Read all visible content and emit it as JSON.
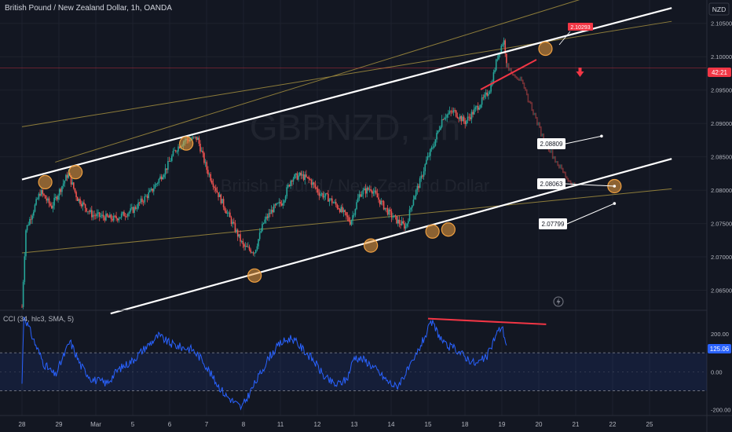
{
  "header": {
    "title": "British Pound / New Zealand Dollar, 1h, OANDA",
    "currency": "NZD",
    "watermark_symbol": "GBPNZD, 1h",
    "watermark_name": "British Pound / New Zealand Dollar"
  },
  "indicator": {
    "title": "CCI (34, hlc3, SMA, 5)",
    "current_value": "125.06"
  },
  "price_tags": {
    "current_price": "2.10293",
    "countdown": "42:21"
  },
  "callouts": [
    {
      "label": "2.08809"
    },
    {
      "label": "2.08063"
    },
    {
      "label": "2.07799"
    }
  ],
  "colors": {
    "background": "#131722",
    "up_candle": "#26a69a",
    "down_candle": "#ef5350",
    "channel_line": "#ffffff",
    "outer_line": "#8d7c3a",
    "cci_line": "#2962ff",
    "marker": "#f0a040",
    "divergence": "#f23645"
  },
  "chart_data": [
    {
      "type": "candlestick",
      "title": "British Pound / New Zealand Dollar, 1h, OANDA",
      "yaxis": {
        "ticks": [
          "2.10500",
          "2.10000",
          "2.09500",
          "2.09000",
          "2.08500",
          "2.08000",
          "2.07500",
          "2.07000",
          "2.06500"
        ],
        "range": [
          2.062,
          2.1085
        ]
      },
      "xaxis": {
        "ticks": [
          "28",
          "29",
          "Mar",
          "5",
          "6",
          "7",
          "8",
          "11",
          "12",
          "13",
          "14",
          "15",
          "18",
          "19",
          "20",
          "21",
          "22",
          "25"
        ],
        "tick_days": [
          0,
          1,
          2,
          3,
          4,
          5,
          6,
          7,
          8,
          9,
          10,
          11,
          12,
          13,
          14,
          15,
          16,
          17
        ]
      },
      "price_waypoints": [
        {
          "day": 0.0,
          "close": 2.0625
        },
        {
          "day": 0.1,
          "close": 2.074
        },
        {
          "day": 0.5,
          "close": 2.0798
        },
        {
          "day": 0.8,
          "close": 2.0775
        },
        {
          "day": 1.25,
          "close": 2.0825
        },
        {
          "day": 1.5,
          "close": 2.0788
        },
        {
          "day": 1.9,
          "close": 2.0763
        },
        {
          "day": 2.5,
          "close": 2.0757
        },
        {
          "day": 3.0,
          "close": 2.077
        },
        {
          "day": 3.5,
          "close": 2.0798
        },
        {
          "day": 3.9,
          "close": 2.0832
        },
        {
          "day": 4.15,
          "close": 2.086
        },
        {
          "day": 4.4,
          "close": 2.0875
        },
        {
          "day": 4.75,
          "close": 2.0878
        },
        {
          "day": 5.0,
          "close": 2.0832
        },
        {
          "day": 5.35,
          "close": 2.079
        },
        {
          "day": 5.7,
          "close": 2.075
        },
        {
          "day": 6.0,
          "close": 2.0715
        },
        {
          "day": 6.3,
          "close": 2.0708
        },
        {
          "day": 6.55,
          "close": 2.0752
        },
        {
          "day": 6.8,
          "close": 2.0772
        },
        {
          "day": 7.05,
          "close": 2.0782
        },
        {
          "day": 7.3,
          "close": 2.0818
        },
        {
          "day": 7.55,
          "close": 2.0822
        },
        {
          "day": 7.8,
          "close": 2.0815
        },
        {
          "day": 8.05,
          "close": 2.0796
        },
        {
          "day": 8.3,
          "close": 2.0788
        },
        {
          "day": 8.6,
          "close": 2.0773
        },
        {
          "day": 8.9,
          "close": 2.0752
        },
        {
          "day": 9.15,
          "close": 2.0795
        },
        {
          "day": 9.45,
          "close": 2.0803
        },
        {
          "day": 9.7,
          "close": 2.0783
        },
        {
          "day": 9.95,
          "close": 2.0765
        },
        {
          "day": 10.2,
          "close": 2.0752
        },
        {
          "day": 10.4,
          "close": 2.0745
        },
        {
          "day": 10.6,
          "close": 2.0788
        },
        {
          "day": 10.8,
          "close": 2.0815
        },
        {
          "day": 10.95,
          "close": 2.0843
        },
        {
          "day": 11.15,
          "close": 2.0868
        },
        {
          "day": 11.4,
          "close": 2.091
        },
        {
          "day": 11.7,
          "close": 2.0918
        },
        {
          "day": 12.0,
          "close": 2.0902
        },
        {
          "day": 12.3,
          "close": 2.0922
        },
        {
          "day": 12.55,
          "close": 2.094
        },
        {
          "day": 12.7,
          "close": 2.0955
        },
        {
          "day": 12.9,
          "close": 2.1005
        },
        {
          "day": 13.05,
          "close": 2.1025
        },
        {
          "day": 13.15,
          "close": 2.0985
        }
      ],
      "projection": [
        {
          "day": 13.15,
          "close": 2.0985
        },
        {
          "day": 13.5,
          "close": 2.0965
        },
        {
          "day": 13.8,
          "close": 2.0925
        },
        {
          "day": 14.1,
          "close": 2.088
        },
        {
          "day": 14.45,
          "close": 2.0845
        },
        {
          "day": 14.8,
          "close": 2.0815
        },
        {
          "day": 15.0,
          "close": 2.0806
        }
      ],
      "channel": {
        "upper": [
          {
            "day": 0,
            "price": 2.0816
          },
          {
            "day": 17.6,
            "price": 2.1073
          }
        ],
        "lower": [
          {
            "day": 2.4,
            "price": 2.0615
          },
          {
            "day": 17.6,
            "price": 2.0847
          }
        ]
      },
      "outer_lines": [
        [
          {
            "day": 0,
            "price": 2.0895
          },
          {
            "day": 17.6,
            "price": 2.1053
          }
        ],
        [
          {
            "day": 0,
            "price": 2.0706
          },
          {
            "day": 17.6,
            "price": 2.0802
          }
        ],
        [
          {
            "day": 0.9,
            "price": 2.0842
          },
          {
            "day": 17.0,
            "price": 2.1118
          }
        ]
      ],
      "touch_markers": [
        {
          "day": 0.63,
          "price": 2.0812
        },
        {
          "day": 1.45,
          "price": 2.0827
        },
        {
          "day": 4.45,
          "price": 2.087
        },
        {
          "day": 6.3,
          "price": 2.0672
        },
        {
          "day": 9.45,
          "price": 2.0717
        },
        {
          "day": 11.12,
          "price": 2.0738
        },
        {
          "day": 11.55,
          "price": 2.0741
        },
        {
          "day": 14.18,
          "price": 2.1012
        },
        {
          "day": 16.05,
          "price": 2.0806
        }
      ],
      "callout_targets": [
        {
          "label": "2.08809",
          "day": 15.7,
          "price": 2.0881
        },
        {
          "label": "2.08063",
          "day": 16.05,
          "price": 2.0806
        },
        {
          "label": "2.07799",
          "day": 16.05,
          "price": 2.078
        }
      ],
      "current_price": 2.10293,
      "last_price_line": 2.0983
    },
    {
      "type": "line",
      "title": "CCI (34, hlc3, SMA, 5)",
      "yaxis": {
        "ticks": [
          "200.00",
          "0.00",
          "-200.00"
        ],
        "range": [
          -230,
          320
        ]
      },
      "bands": [
        100,
        -100
      ],
      "series_waypoints": [
        {
          "day": 0.0,
          "value": -60
        },
        {
          "day": 0.05,
          "value": 300
        },
        {
          "day": 0.35,
          "value": 150
        },
        {
          "day": 0.6,
          "value": 40
        },
        {
          "day": 0.9,
          "value": -20
        },
        {
          "day": 1.3,
          "value": 160
        },
        {
          "day": 1.6,
          "value": 30
        },
        {
          "day": 1.9,
          "value": -40
        },
        {
          "day": 2.3,
          "value": -60
        },
        {
          "day": 2.6,
          "value": 10
        },
        {
          "day": 3.0,
          "value": 60
        },
        {
          "day": 3.3,
          "value": 120
        },
        {
          "day": 3.7,
          "value": 190
        },
        {
          "day": 4.0,
          "value": 150
        },
        {
          "day": 4.3,
          "value": 130
        },
        {
          "day": 4.6,
          "value": 120
        },
        {
          "day": 4.9,
          "value": 60
        },
        {
          "day": 5.2,
          "value": -40
        },
        {
          "day": 5.5,
          "value": -120
        },
        {
          "day": 5.75,
          "value": -160
        },
        {
          "day": 5.95,
          "value": -190
        },
        {
          "day": 6.2,
          "value": -100
        },
        {
          "day": 6.4,
          "value": -30
        },
        {
          "day": 6.7,
          "value": 80
        },
        {
          "day": 7.0,
          "value": 150
        },
        {
          "day": 7.3,
          "value": 180
        },
        {
          "day": 7.6,
          "value": 120
        },
        {
          "day": 7.9,
          "value": 60
        },
        {
          "day": 8.2,
          "value": -30
        },
        {
          "day": 8.5,
          "value": -70
        },
        {
          "day": 8.8,
          "value": -40
        },
        {
          "day": 9.0,
          "value": 80
        },
        {
          "day": 9.3,
          "value": 60
        },
        {
          "day": 9.6,
          "value": 10
        },
        {
          "day": 9.9,
          "value": -50
        },
        {
          "day": 10.15,
          "value": -80
        },
        {
          "day": 10.35,
          "value": -20
        },
        {
          "day": 10.6,
          "value": 50
        },
        {
          "day": 10.8,
          "value": 140
        },
        {
          "day": 10.95,
          "value": 200
        },
        {
          "day": 11.1,
          "value": 260
        },
        {
          "day": 11.25,
          "value": 210
        },
        {
          "day": 11.45,
          "value": 140
        },
        {
          "day": 11.75,
          "value": 120
        },
        {
          "day": 12.0,
          "value": 80
        },
        {
          "day": 12.3,
          "value": 40
        },
        {
          "day": 12.6,
          "value": 80
        },
        {
          "day": 12.85,
          "value": 200
        },
        {
          "day": 13.0,
          "value": 240
        },
        {
          "day": 13.15,
          "value": 125
        }
      ],
      "divergence_line": [
        {
          "day": 11.0,
          "value": 280
        },
        {
          "day": 14.2,
          "value": 250
        }
      ]
    }
  ]
}
